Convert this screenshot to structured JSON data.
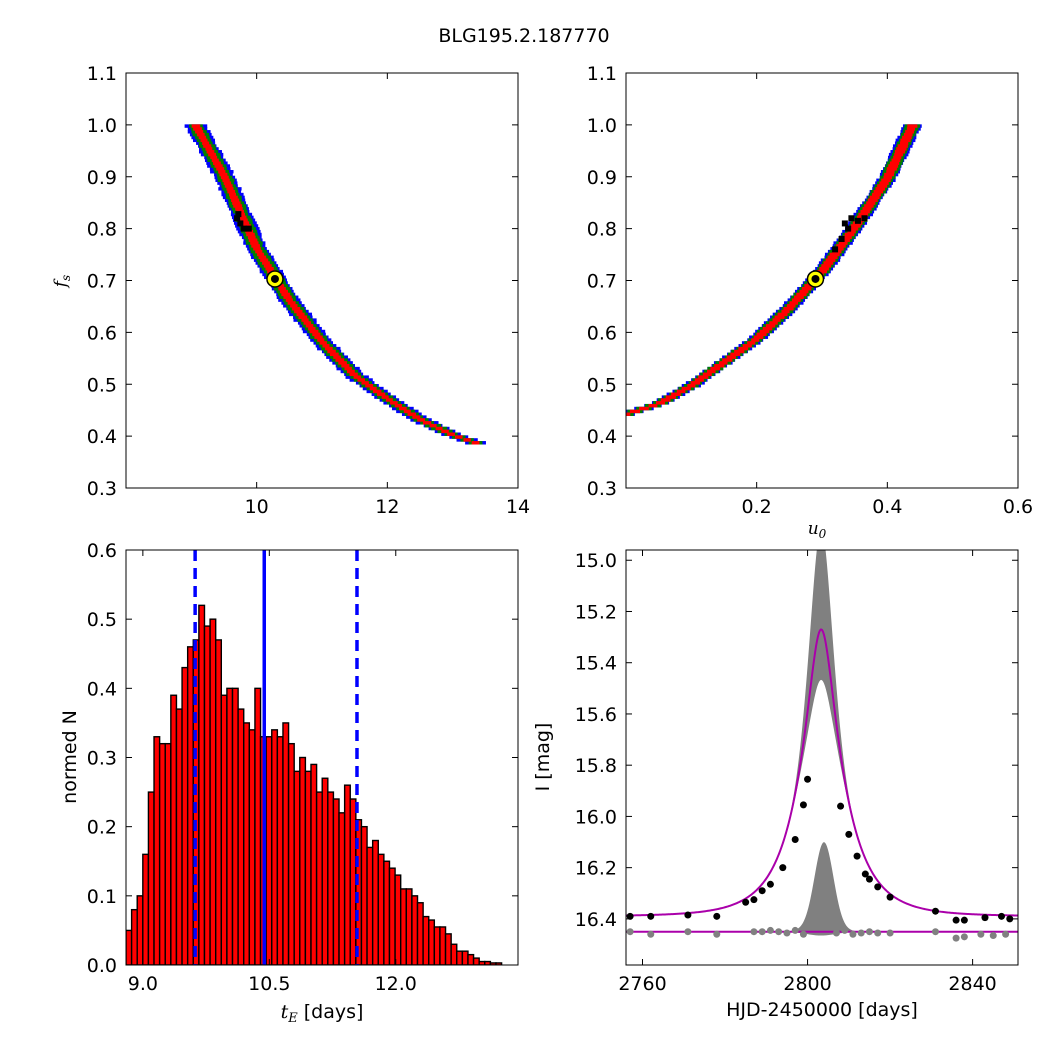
{
  "title": "BLG195.2.187770",
  "colors": {
    "sigma1": "#ff0000",
    "sigma2": "#008000",
    "sigma3": "#0000ff",
    "samples": "#000000",
    "best_fit_face": "#000000",
    "best_fit_edge": "#ffff00",
    "hist_bar": "#ff0000",
    "hist_edge": "#000000",
    "hist_lines": "#0000ff",
    "model": "#aa00aa",
    "band": "#808080",
    "residuals": "#808080"
  },
  "chart_data": [
    {
      "type": "heatmap",
      "panel": "top-left",
      "xlabel": "",
      "ylabel": "f_s",
      "xlim": [
        8,
        14
      ],
      "ylim": [
        0.3,
        1.1
      ],
      "xticks": [
        10,
        12,
        14
      ],
      "yticks": [
        0.3,
        0.4,
        0.5,
        0.6,
        0.7,
        0.8,
        0.9,
        1.0,
        1.1
      ],
      "best_fit": {
        "x": 10.28,
        "y": 0.703
      },
      "ridge": [
        [
          9.05,
          1.0
        ],
        [
          9.5,
          0.9
        ],
        [
          10.0,
          0.76
        ],
        [
          10.5,
          0.66
        ],
        [
          11.0,
          0.58
        ],
        [
          11.5,
          0.515
        ],
        [
          12.0,
          0.47
        ],
        [
          12.5,
          0.43
        ],
        [
          13.0,
          0.4
        ],
        [
          13.35,
          0.385
        ]
      ],
      "half_widths": {
        "sigma1": 0.06,
        "sigma2": 0.115,
        "sigma3": 0.16
      },
      "samples": [
        [
          9.72,
          0.828
        ],
        [
          9.75,
          0.81
        ],
        [
          9.8,
          0.8
        ],
        [
          9.88,
          0.8
        ],
        [
          9.7,
          0.82
        ]
      ]
    },
    {
      "type": "heatmap",
      "panel": "top-right",
      "xlabel": "u_0",
      "ylabel": "",
      "xlim": [
        0,
        0.6
      ],
      "ylim": [
        0.3,
        1.1
      ],
      "xticks": [
        0.2,
        0.4,
        0.6
      ],
      "yticks": [
        0.3,
        0.4,
        0.5,
        0.6,
        0.7,
        0.8,
        0.9,
        1.0,
        1.1
      ],
      "best_fit": {
        "x": 0.29,
        "y": 0.703
      },
      "ridge": [
        [
          0.0,
          0.44
        ],
        [
          0.05,
          0.46
        ],
        [
          0.1,
          0.495
        ],
        [
          0.15,
          0.54
        ],
        [
          0.2,
          0.585
        ],
        [
          0.25,
          0.645
        ],
        [
          0.3,
          0.715
        ],
        [
          0.35,
          0.8
        ],
        [
          0.4,
          0.895
        ],
        [
          0.44,
          1.0
        ]
      ],
      "half_widths": {
        "sigma1": 0.07,
        "sigma2": 0.11,
        "sigma3": 0.135
      },
      "samples": [
        [
          0.335,
          0.81
        ],
        [
          0.345,
          0.82
        ],
        [
          0.355,
          0.815
        ],
        [
          0.365,
          0.82
        ],
        [
          0.34,
          0.8
        ],
        [
          0.33,
          0.78
        ],
        [
          0.32,
          0.76
        ]
      ]
    },
    {
      "type": "bar",
      "panel": "bottom-left",
      "xlabel": "t_E  [days]",
      "ylabel": "normed N",
      "xlim": [
        8.8,
        13.45
      ],
      "ylim": [
        0.0,
        0.6
      ],
      "xticks": [
        9.0,
        10.5,
        12.0
      ],
      "yticks": [
        0.0,
        0.1,
        0.2,
        0.3,
        0.4,
        0.5,
        0.6
      ],
      "bin_start": 8.8,
      "bin_width": 0.0665,
      "values": [
        0.05,
        0.08,
        0.1,
        0.16,
        0.25,
        0.33,
        0.32,
        0.32,
        0.39,
        0.37,
        0.43,
        0.46,
        0.47,
        0.52,
        0.49,
        0.5,
        0.47,
        0.39,
        0.4,
        0.4,
        0.37,
        0.35,
        0.34,
        0.4,
        0.33,
        0.33,
        0.34,
        0.33,
        0.35,
        0.32,
        0.28,
        0.3,
        0.28,
        0.29,
        0.25,
        0.27,
        0.25,
        0.24,
        0.22,
        0.26,
        0.24,
        0.21,
        0.2,
        0.17,
        0.18,
        0.16,
        0.15,
        0.14,
        0.13,
        0.11,
        0.11,
        0.1,
        0.09,
        0.07,
        0.065,
        0.055,
        0.055,
        0.045,
        0.03,
        0.02,
        0.02,
        0.015,
        0.01,
        0.005,
        0.005,
        0.003,
        0.003
      ],
      "vlines": [
        {
          "x": 10.44,
          "style": "solid"
        },
        {
          "x": 9.62,
          "style": "dashed"
        },
        {
          "x": 11.54,
          "style": "dashed"
        }
      ]
    },
    {
      "type": "line",
      "panel": "bottom-right",
      "xlabel": "HJD-2450000 [days]",
      "ylabel": "I [mag]",
      "xlim": [
        2756,
        2851
      ],
      "ylim": [
        16.58,
        14.96
      ],
      "xticks": [
        2760,
        2800,
        2840
      ],
      "yticks": [
        15.0,
        15.2,
        15.4,
        15.6,
        15.8,
        16.0,
        16.2,
        16.4
      ],
      "model": {
        "t0": 2803.3,
        "baseline": 16.39,
        "peak": 15.27,
        "tE": 10.3,
        "u0": 0.29
      },
      "data_points": [
        [
          2757,
          16.39
        ],
        [
          2762,
          16.39
        ],
        [
          2771,
          16.385
        ],
        [
          2778,
          16.39
        ],
        [
          2785,
          16.335
        ],
        [
          2787,
          16.325
        ],
        [
          2789,
          16.29
        ],
        [
          2791,
          16.265
        ],
        [
          2794,
          16.2
        ],
        [
          2797,
          16.09
        ],
        [
          2799,
          15.955
        ],
        [
          2800,
          15.855
        ],
        [
          2808,
          15.96
        ],
        [
          2810,
          16.07
        ],
        [
          2812,
          16.155
        ],
        [
          2814,
          16.225
        ],
        [
          2815,
          16.245
        ],
        [
          2817,
          16.275
        ],
        [
          2820,
          16.315
        ],
        [
          2831,
          16.37
        ],
        [
          2836,
          16.405
        ],
        [
          2838,
          16.405
        ],
        [
          2843,
          16.395
        ],
        [
          2847,
          16.39
        ],
        [
          2849,
          16.4
        ]
      ],
      "residual_points": [
        [
          2757,
          16.45
        ],
        [
          2762,
          16.46
        ],
        [
          2771,
          16.45
        ],
        [
          2778,
          16.46
        ],
        [
          2787,
          16.45
        ],
        [
          2789,
          16.45
        ],
        [
          2791,
          16.445
        ],
        [
          2793,
          16.45
        ],
        [
          2795,
          16.455
        ],
        [
          2797,
          16.445
        ],
        [
          2799,
          16.46
        ],
        [
          2807,
          16.455
        ],
        [
          2809,
          16.445
        ],
        [
          2811,
          16.46
        ],
        [
          2813,
          16.455
        ],
        [
          2815,
          16.45
        ],
        [
          2817,
          16.455
        ],
        [
          2820,
          16.455
        ],
        [
          2831,
          16.45
        ],
        [
          2836,
          16.475
        ],
        [
          2838,
          16.47
        ],
        [
          2842,
          16.46
        ],
        [
          2845,
          16.465
        ],
        [
          2848,
          16.46
        ]
      ]
    }
  ]
}
